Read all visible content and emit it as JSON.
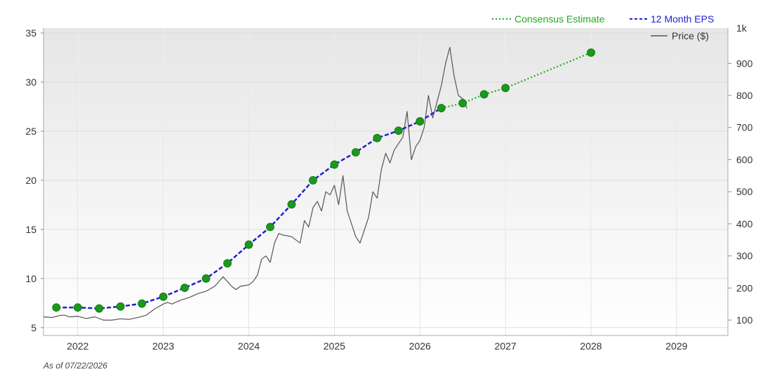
{
  "chart_data": {
    "type": "line",
    "x_range": [
      2021.6,
      2029.6
    ],
    "x_ticks": [
      2022,
      2023,
      2024,
      2025,
      2026,
      2027,
      2028,
      2029
    ],
    "left_axis": {
      "ylim": [
        4.2,
        35.5
      ],
      "ticks": [
        5,
        10,
        15,
        20,
        25,
        30,
        35
      ]
    },
    "right_axis": {
      "ylim": [
        52,
        1010
      ],
      "ticks": [
        100,
        200,
        300,
        400,
        500,
        600,
        700,
        800,
        900
      ],
      "tick_labels": [
        "100",
        "200",
        "300",
        "400",
        "500",
        "600",
        "700",
        "800",
        "900",
        "1k"
      ],
      "top_label": "1k"
    },
    "grid": true,
    "legend": [
      {
        "name": "Consensus Estimate",
        "color": "#22aa22",
        "style": "dotted"
      },
      {
        "name": "12 Month EPS",
        "color": "#1f1fd0",
        "style": "dashed"
      },
      {
        "name": "Price ($)",
        "color": "#555555",
        "style": "solid"
      }
    ],
    "series": [
      {
        "name": "12 Month EPS",
        "axis": "left",
        "color": "#1f1fd0",
        "x": [
          2021.75,
          2022.0,
          2022.25,
          2022.5,
          2022.75,
          2023.0,
          2023.25,
          2023.5,
          2023.75,
          2024.0,
          2024.25,
          2024.5,
          2024.75,
          2025.0,
          2025.25,
          2025.5,
          2025.75,
          2026.0,
          2026.25
        ],
        "y": [
          7.05,
          7.05,
          6.95,
          7.15,
          7.45,
          8.15,
          9.05,
          10.0,
          11.55,
          13.45,
          15.25,
          17.55,
          20.0,
          21.6,
          22.85,
          24.3,
          25.05,
          26.0,
          27.35
        ]
      },
      {
        "name": "Consensus Estimate",
        "axis": "left",
        "color": "#22aa22",
        "x": [
          2026.25,
          2026.5,
          2026.75,
          2027.0,
          2028.0
        ],
        "y": [
          27.35,
          27.85,
          28.75,
          29.4,
          33.0
        ]
      },
      {
        "name": "Price ($)",
        "axis": "right",
        "color": "#555555",
        "x": [
          2021.6,
          2021.7,
          2021.8,
          2021.85,
          2021.9,
          2022.0,
          2022.1,
          2022.2,
          2022.3,
          2022.4,
          2022.5,
          2022.6,
          2022.7,
          2022.8,
          2022.9,
          2023.0,
          2023.05,
          2023.1,
          2023.2,
          2023.3,
          2023.4,
          2023.5,
          2023.6,
          2023.7,
          2023.8,
          2023.85,
          2023.9,
          2024.0,
          2024.05,
          2024.1,
          2024.15,
          2024.2,
          2024.25,
          2024.3,
          2024.35,
          2024.4,
          2024.5,
          2024.6,
          2024.65,
          2024.7,
          2024.75,
          2024.8,
          2024.85,
          2024.9,
          2024.95,
          2025.0,
          2025.05,
          2025.1,
          2025.15,
          2025.2,
          2025.25,
          2025.3,
          2025.35,
          2025.4,
          2025.45,
          2025.5,
          2025.55,
          2025.6,
          2025.65,
          2025.7,
          2025.75,
          2025.8,
          2025.85,
          2025.9,
          2025.95,
          2026.0,
          2026.05,
          2026.1,
          2026.15,
          2026.2,
          2026.25,
          2026.3,
          2026.35,
          2026.4,
          2026.45,
          2026.5,
          2026.55
        ],
        "y": [
          110,
          108,
          115,
          115,
          110,
          112,
          105,
          110,
          100,
          100,
          104,
          102,
          108,
          115,
          135,
          150,
          155,
          150,
          162,
          170,
          182,
          190,
          205,
          235,
          205,
          195,
          205,
          210,
          220,
          240,
          290,
          300,
          280,
          340,
          370,
          365,
          360,
          340,
          410,
          390,
          450,
          470,
          440,
          500,
          490,
          520,
          460,
          550,
          440,
          400,
          360,
          340,
          380,
          420,
          500,
          480,
          570,
          620,
          590,
          630,
          650,
          670,
          750,
          600,
          640,
          660,
          700,
          800,
          730,
          780,
          830,
          900,
          950,
          860,
          800,
          790,
          760
        ]
      }
    ],
    "markers": {
      "color": "#1a9a1a",
      "x": [
        2021.75,
        2022.0,
        2022.25,
        2022.5,
        2022.75,
        2023.0,
        2023.25,
        2023.5,
        2023.75,
        2024.0,
        2024.25,
        2024.5,
        2024.75,
        2025.0,
        2025.25,
        2025.5,
        2025.75,
        2026.0,
        2026.25,
        2026.5,
        2026.75,
        2027.0,
        2028.0
      ],
      "y": [
        7.05,
        7.05,
        6.95,
        7.15,
        7.45,
        8.15,
        9.05,
        10.0,
        11.55,
        13.45,
        15.25,
        17.55,
        20.0,
        21.6,
        22.85,
        24.3,
        25.05,
        26.0,
        27.35,
        27.85,
        28.75,
        29.4,
        33.0
      ]
    }
  },
  "footer": {
    "as_of": "As of 07/22/2026"
  }
}
